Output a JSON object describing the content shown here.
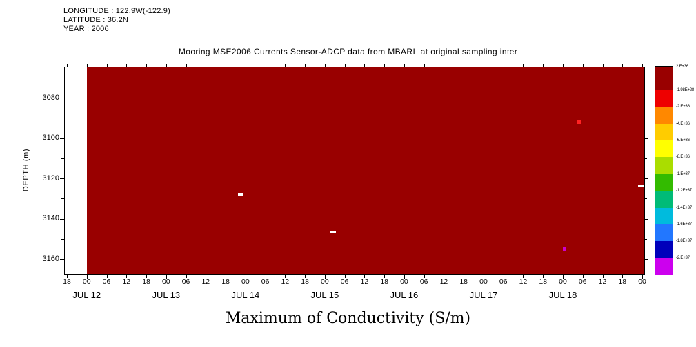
{
  "header": {
    "longitude": "LONGITUDE : 122.9W(-122.9)",
    "latitude": "LATITUDE : 36.2N",
    "year": "YEAR : 2006"
  },
  "title": "Mooring MSE2006 Currents Sensor-ADCP data from MBARI  at original sampling inter",
  "axis_title_bottom": "Maximum of Conductivity (S/m)",
  "chart_data": {
    "type": "heatmap",
    "title": "Mooring MSE2006 Currents Sensor-ADCP data from MBARI  at original sampling inter",
    "xlabel": "Maximum of Conductivity (S/m)",
    "ylabel": "DEPTH (m)",
    "x_tick_labels": [
      "18",
      "00",
      "06",
      "12",
      "18",
      "00",
      "06",
      "12",
      "18",
      "00",
      "06",
      "12",
      "18",
      "00",
      "06",
      "12",
      "18",
      "00",
      "06",
      "12",
      "18",
      "00",
      "06",
      "12",
      "18",
      "00",
      "06",
      "12",
      "18",
      "00"
    ],
    "x_day_labels": [
      "JUL 12",
      "JUL 13",
      "JUL 14",
      "JUL 15",
      "JUL 16",
      "JUL 17",
      "JUL 18"
    ],
    "time_range": [
      "JUL 11 18:00",
      "JUL 19 00:00"
    ],
    "y_tick_values": [
      3080,
      3100,
      3120,
      3140,
      3160
    ],
    "y_minor_tick_values": [
      3070,
      3090,
      3110,
      3130,
      3150
    ],
    "y_range_m": [
      3065,
      3168
    ],
    "field_fill_color": "#990000",
    "no_data_before": "JUL 12 00:00",
    "anomalies": [
      {
        "kind": "dash",
        "color": "#ffffff",
        "t_hours": 52.6,
        "depth_m": 3128
      },
      {
        "kind": "dash",
        "color": "#ffffff",
        "t_hours": 80.5,
        "depth_m": 3147
      },
      {
        "kind": "dot",
        "color": "#ff2222",
        "t_hours": 155.0,
        "depth_m": 3092
      },
      {
        "kind": "dot",
        "color": "#cc00cc",
        "t_hours": 150.5,
        "depth_m": 3155
      },
      {
        "kind": "dash",
        "color": "#ffffff",
        "t_hours": 173.5,
        "depth_m": 3124
      }
    ],
    "colorbar": {
      "tick_labels": [
        "2.E+36",
        "-1.98E+28",
        "-2.E+36",
        "-4.E+36",
        "-6.E+36",
        "-8.E+36",
        "-1.E+37",
        "-1.2E+37",
        "-1.4E+37",
        "-1.6E+37",
        "-1.8E+37",
        "-2.E+37"
      ],
      "colors": [
        "#990000",
        "#ee0000",
        "#ff8800",
        "#ffcc00",
        "#ffff00",
        "#aadd00",
        "#33bb00",
        "#00bb77",
        "#00bbdd",
        "#2277ff",
        "#0000bb",
        "#cc00ee"
      ]
    }
  }
}
